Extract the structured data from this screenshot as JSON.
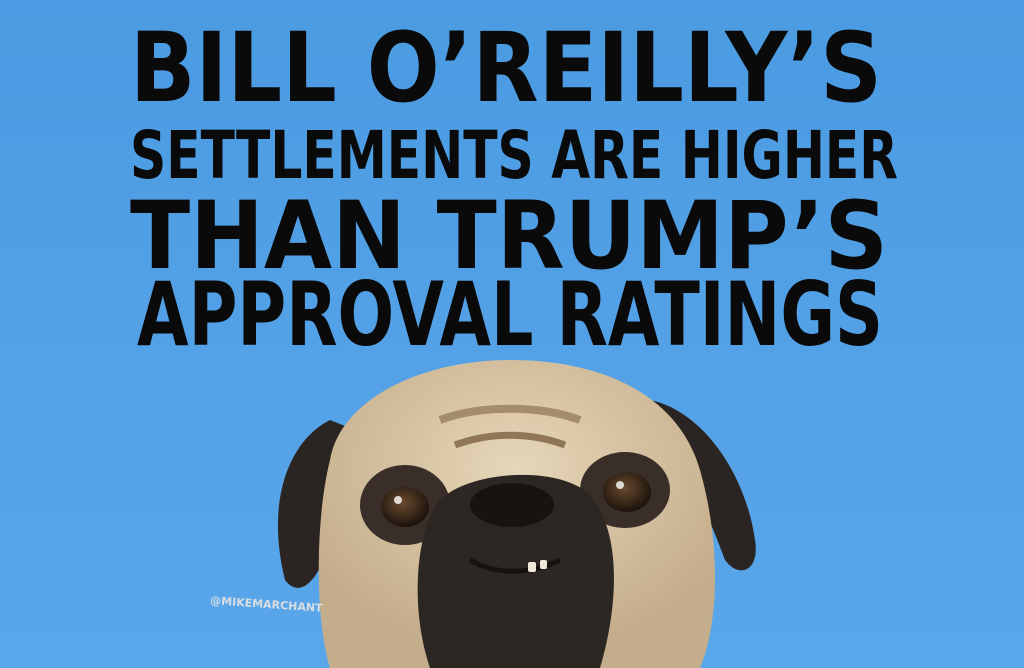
{
  "headline": {
    "lines": [
      "BILL O’REILLY’S",
      "SETTLEMENTS ARE HIGHER",
      "THAN TRUMP’S",
      "APPROVAL RATINGS"
    ]
  },
  "watermark": "@MIKEMARCHANT"
}
